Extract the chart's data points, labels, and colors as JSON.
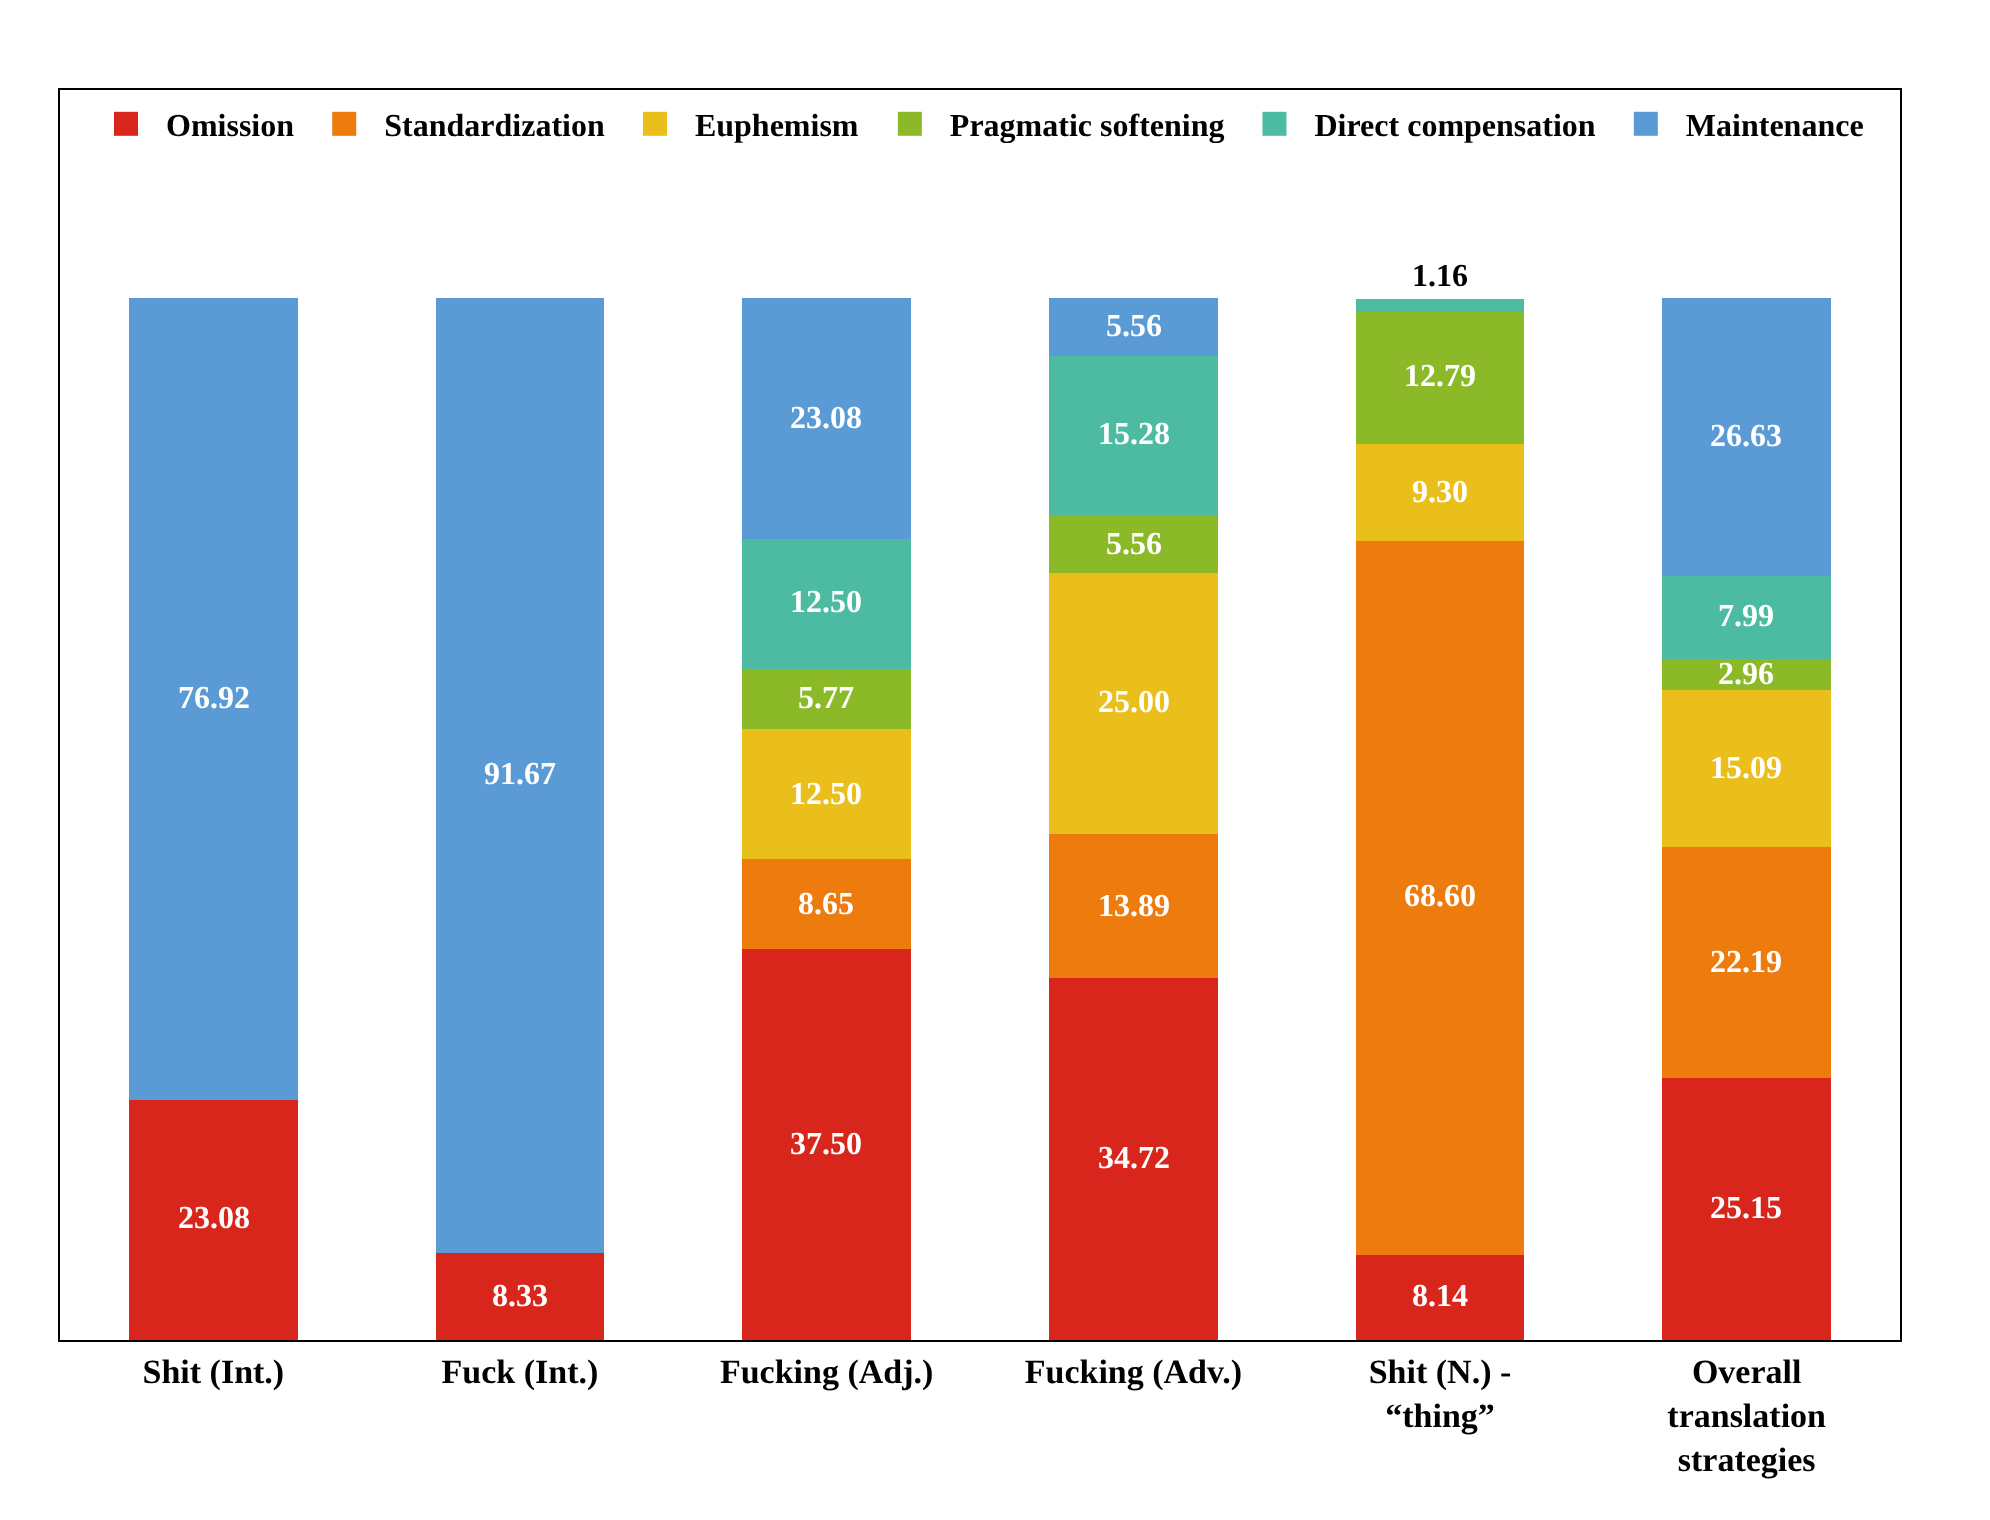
{
  "chart_data": {
    "type": "bar",
    "stacked": true,
    "legend": "top",
    "categories": [
      "Shit (Int.)",
      "Fuck (Int.)",
      "Fucking (Adj.)",
      "Fucking (Adv.)",
      "Shit (N.) - “thing”",
      "Overall translation strategies"
    ],
    "series": [
      {
        "name": "Omission",
        "color": "#d9261c",
        "values": [
          23.08,
          8.33,
          37.5,
          34.72,
          8.14,
          25.15
        ],
        "value_labels": [
          "23.08",
          "8.33",
          "37.50",
          "34.72",
          "8.14",
          "25.15"
        ]
      },
      {
        "name": "Standardization",
        "color": "#ee7b0d",
        "values": [
          null,
          null,
          8.65,
          13.89,
          68.6,
          22.19
        ],
        "value_labels": [
          null,
          null,
          "8.65",
          "13.89",
          "68.60",
          "22.19"
        ]
      },
      {
        "name": "Euphemism",
        "color": "#ebbf1b",
        "values": [
          null,
          null,
          12.5,
          25.0,
          9.3,
          15.09
        ],
        "value_labels": [
          null,
          null,
          "12.50",
          "25.00",
          "9.30",
          "15.09"
        ]
      },
      {
        "name": "Pragmatic softening",
        "color": "#8cb928",
        "values": [
          null,
          null,
          5.77,
          5.56,
          12.79,
          2.96
        ],
        "value_labels": [
          null,
          null,
          "5.77",
          "5.56",
          "12.79",
          "2.96"
        ]
      },
      {
        "name": "Direct compensation",
        "color": "#4cbba1",
        "values": [
          null,
          null,
          12.5,
          15.28,
          1.16,
          7.99
        ],
        "value_labels": [
          null,
          null,
          "12.50",
          "15.28",
          "1.16",
          "7.99"
        ]
      },
      {
        "name": "Maintenance",
        "color": "#5b9bd5",
        "values": [
          76.92,
          91.67,
          23.08,
          5.56,
          null,
          26.63
        ],
        "value_labels": [
          "76.92",
          "91.67",
          "23.08",
          "5.56",
          null,
          "26.63"
        ]
      }
    ]
  }
}
